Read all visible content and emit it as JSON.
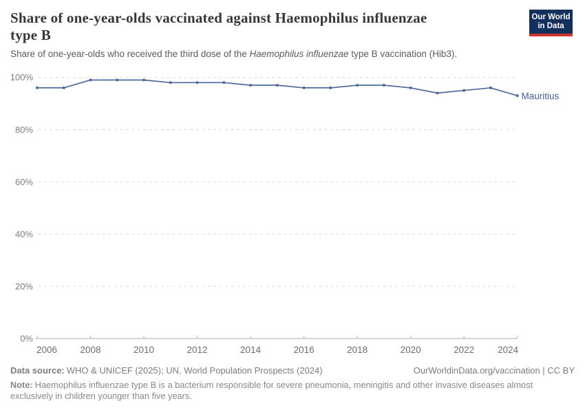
{
  "header": {
    "title_lines": [
      "Share of one-year-olds vaccinated against Haemophilus influenzae",
      "type B"
    ],
    "subtitle": {
      "pre": "Share of one-year-olds who received the third dose of the ",
      "italic": "Haemophilus influenzae",
      "post": " type B vaccination (Hib3)."
    },
    "logo": {
      "line1": "Our World",
      "line2": "in Data",
      "bg_color": "#12305B",
      "stripe_color": "#D0352B"
    }
  },
  "chart_data": {
    "type": "line",
    "title": "Share of one-year-olds vaccinated against Haemophilus influenzae type B",
    "x": [
      2006,
      2007,
      2008,
      2009,
      2010,
      2011,
      2012,
      2013,
      2014,
      2015,
      2016,
      2017,
      2018,
      2019,
      2020,
      2021,
      2022,
      2023,
      2024
    ],
    "series": [
      {
        "name": "Mauritius",
        "color": "#4d689a",
        "values": [
          96,
          96,
          99,
          99,
          99,
          98,
          98,
          98,
          97,
          97,
          96,
          96,
          97,
          97,
          96,
          94,
          95,
          96,
          93
        ]
      }
    ],
    "ylim": [
      0,
      100
    ],
    "yticks": [
      0,
      20,
      40,
      60,
      80,
      100
    ],
    "ytick_suffix": "%",
    "xticks": [
      2006,
      2008,
      2010,
      2012,
      2014,
      2016,
      2018,
      2020,
      2022,
      2024
    ],
    "grid": "horizontal-dashed",
    "legend": "end-of-line-label",
    "colors": {
      "grid": "#dcdcdc",
      "axis": "#a8a8a8",
      "tick": "#b3b3b3",
      "ytick_label": "#7d7d7d",
      "xtick_label": "#6e6e6e",
      "entity_label": "#44618f"
    }
  },
  "footer": {
    "data_source_label": "Data source:",
    "data_source_text": "WHO & UNICEF (2025); UN, World Population Prospects (2024)",
    "license_text": "OurWorldinData.org/vaccination | CC BY",
    "note_label": "Note:",
    "note_line1": "Haemophilus influenzae type B is a bacterium responsible for severe pneumonia, meningitis and other invasive diseases almost",
    "note_line2": "exclusively in children younger than five years."
  }
}
